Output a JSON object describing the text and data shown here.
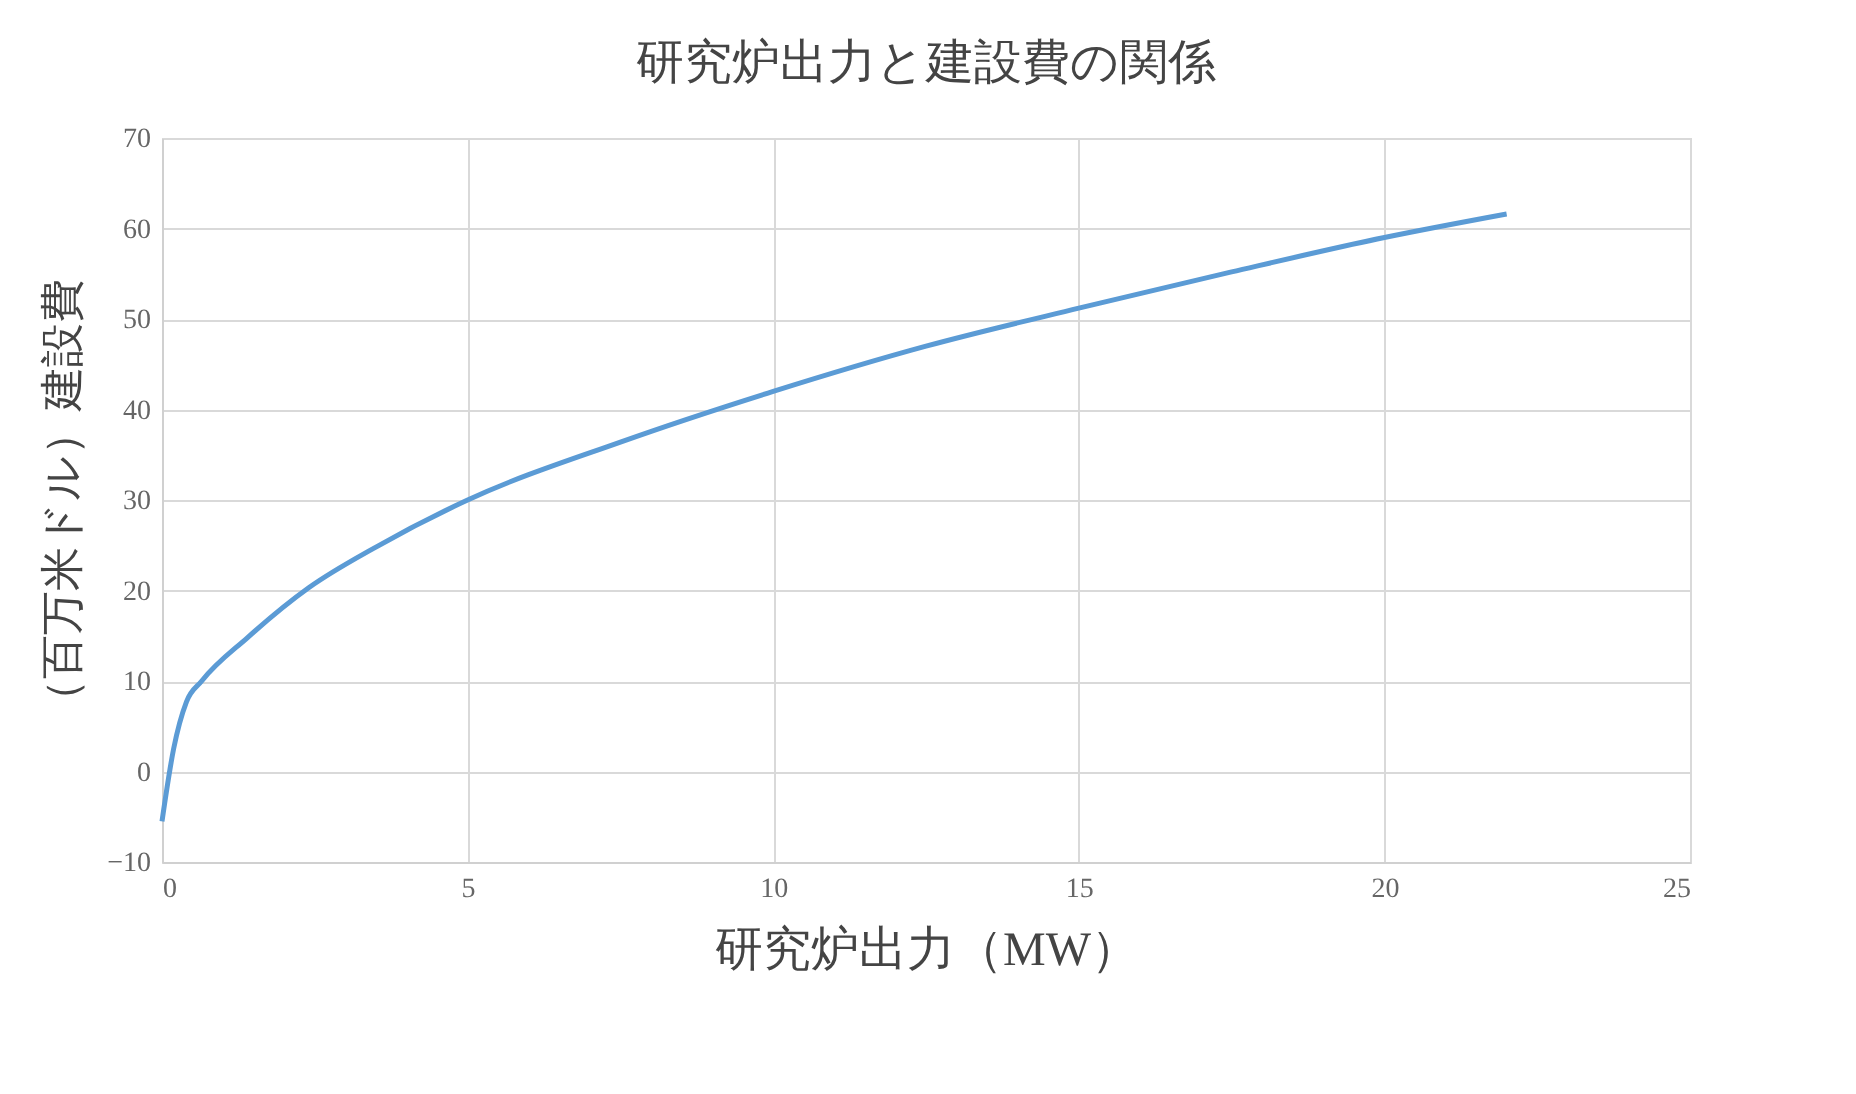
{
  "chart_data": {
    "type": "line",
    "title": "研究炉出力と建設費の関係",
    "xlabel": "研究炉出力（MW）",
    "ylabel": "（百万米ドル）建設費",
    "series": [
      {
        "color": "#5b9bd5",
        "x": [
          0,
          0.19,
          0.4,
          0.65,
          1.4,
          2.4,
          3.5,
          5,
          7.5,
          10,
          12.5,
          15,
          17.5,
          20,
          22
        ],
        "values": [
          -5.5,
          2.5,
          7.7,
          10,
          14.8,
          20.3,
          24.8,
          30,
          36.4,
          42,
          47,
          51.2,
          55.2,
          59,
          61.6
        ]
      }
    ],
    "xlim": [
      0,
      25
    ],
    "xticks": [
      0,
      5,
      10,
      15,
      20,
      25
    ],
    "ylim": [
      -10,
      70
    ],
    "yticks": [
      -10,
      0,
      10,
      20,
      30,
      40,
      50,
      60,
      70
    ],
    "grid": true,
    "marker": "none",
    "line_style": "solid",
    "legend": false
  }
}
